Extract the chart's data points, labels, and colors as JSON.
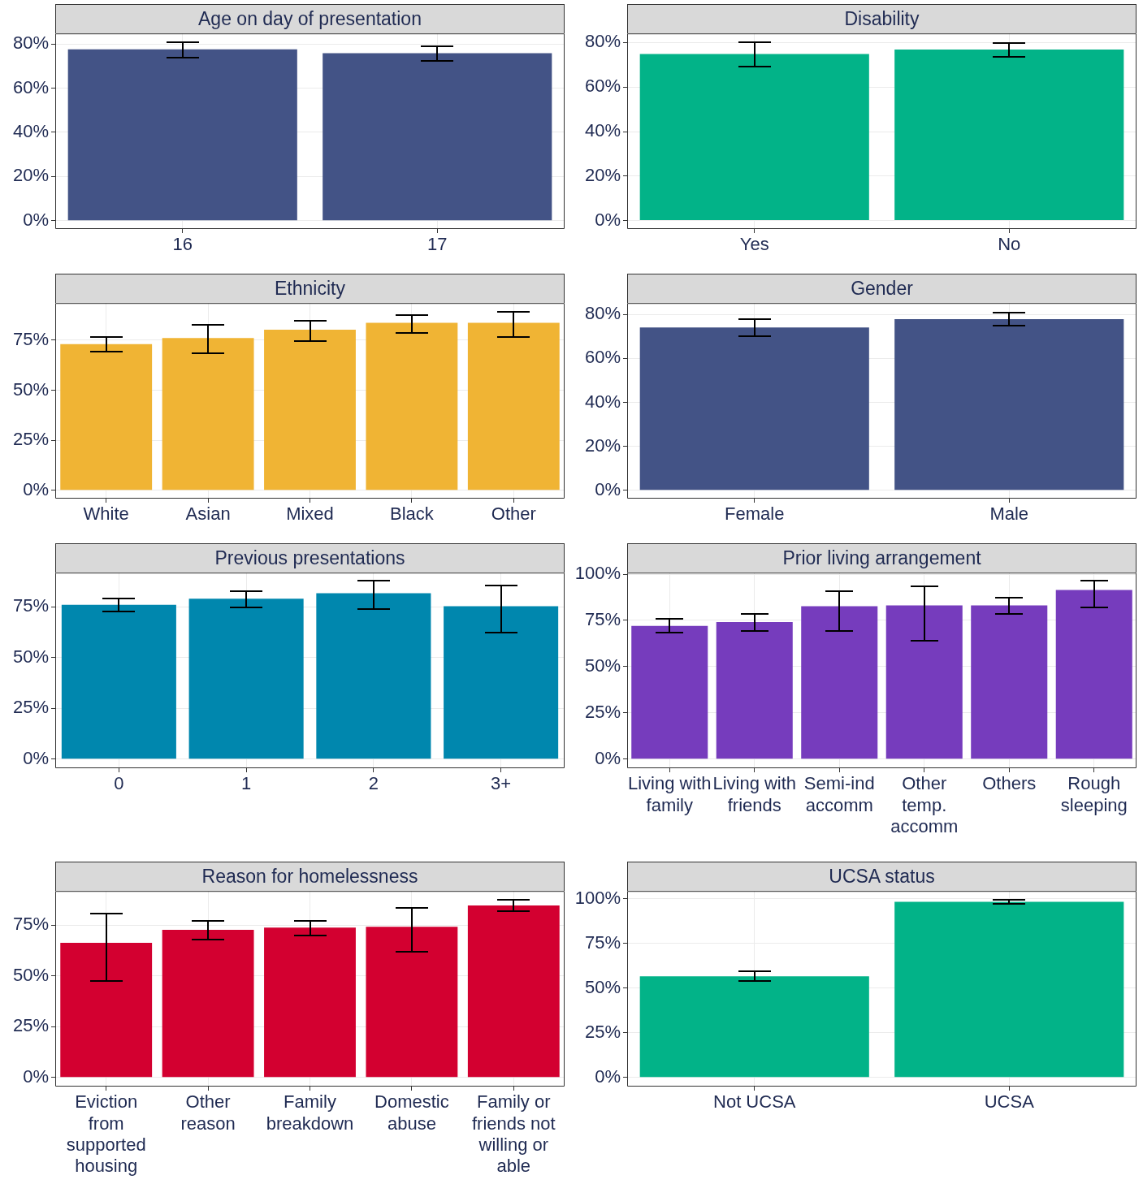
{
  "chart_data": [
    {
      "type": "bar",
      "title": "Age on day of presentation",
      "categories": [
        "16",
        "17"
      ],
      "values": [
        77.6,
        75.9
      ],
      "errors": [
        [
          73.8,
          80.7
        ],
        [
          72.4,
          79.0
        ]
      ],
      "color": "#435386",
      "ylim": [
        -3.8,
        84.8
      ],
      "yticks": [
        {
          "value": 0,
          "label": "0%"
        },
        {
          "value": 20,
          "label": "20%"
        },
        {
          "value": 40,
          "label": "40%"
        },
        {
          "value": 60,
          "label": "60%"
        },
        {
          "value": 80,
          "label": "80%"
        }
      ],
      "grid": true
    },
    {
      "type": "bar",
      "title": "Disability",
      "categories": [
        "Yes",
        "No"
      ],
      "values": [
        74.9,
        76.9
      ],
      "errors": [
        [
          69.1,
          80.0
        ],
        [
          73.5,
          79.7
        ]
      ],
      "color": "#02b388",
      "ylim": [
        -3.8,
        84.1
      ],
      "yticks": [
        {
          "value": 0,
          "label": "0%"
        },
        {
          "value": 20,
          "label": "20%"
        },
        {
          "value": 40,
          "label": "40%"
        },
        {
          "value": 60,
          "label": "60%"
        },
        {
          "value": 80,
          "label": "80%"
        }
      ],
      "grid": true
    },
    {
      "type": "bar",
      "title": "Ethnicity",
      "categories": [
        "White",
        "Asian",
        "Mixed",
        "Black",
        "Other"
      ],
      "values": [
        73.1,
        76.1,
        80.3,
        83.7,
        83.7
      ],
      "errors": [
        [
          69.3,
          76.5
        ],
        [
          68.5,
          82.6
        ],
        [
          74.6,
          84.9
        ],
        [
          78.8,
          87.6
        ],
        [
          76.5,
          89.1
        ]
      ],
      "color": "#f0b434",
      "ylim": [
        -4.2,
        93.6
      ],
      "yticks": [
        {
          "value": 0,
          "label": "0%"
        },
        {
          "value": 25,
          "label": "25%"
        },
        {
          "value": 50,
          "label": "50%"
        },
        {
          "value": 75,
          "label": "75%"
        }
      ],
      "grid": true
    },
    {
      "type": "bar",
      "title": "Gender",
      "categories": [
        "Female",
        "Male"
      ],
      "values": [
        74.1,
        77.9
      ],
      "errors": [
        [
          70.3,
          77.9
        ],
        [
          74.8,
          81.0
        ]
      ],
      "color": "#435386",
      "ylim": [
        -3.8,
        85.2
      ],
      "yticks": [
        {
          "value": 0,
          "label": "0%"
        },
        {
          "value": 20,
          "label": "20%"
        },
        {
          "value": 40,
          "label": "40%"
        },
        {
          "value": 60,
          "label": "60%"
        },
        {
          "value": 80,
          "label": "80%"
        }
      ],
      "grid": true
    },
    {
      "type": "bar",
      "title": "Previous presentations",
      "categories": [
        "0",
        "1",
        "2",
        "3+"
      ],
      "values": [
        76.1,
        79.1,
        81.8,
        75.4
      ],
      "errors": [
        [
          72.8,
          79.1
        ],
        [
          74.6,
          82.9
        ],
        [
          73.9,
          87.8
        ],
        [
          62.3,
          85.5
        ]
      ],
      "color": "#0087ae",
      "ylim": [
        -4.5,
        91.9
      ],
      "yticks": [
        {
          "value": 0,
          "label": "0%"
        },
        {
          "value": 25,
          "label": "25%"
        },
        {
          "value": 50,
          "label": "50%"
        },
        {
          "value": 75,
          "label": "75%"
        }
      ],
      "grid": true
    },
    {
      "type": "bar",
      "title": "Prior living arrangement",
      "categories": [
        "Living with family",
        "Living with friends",
        "Semi-ind accomm",
        "Other temp. accomm",
        "Others",
        "Rough sleeping"
      ],
      "values": [
        72.0,
        74.1,
        82.7,
        83.1,
        83.1,
        91.4
      ],
      "errors": [
        [
          68.3,
          75.7
        ],
        [
          69.5,
          78.6
        ],
        [
          69.1,
          90.9
        ],
        [
          63.8,
          93.4
        ],
        [
          78.6,
          87.2
        ],
        [
          81.9,
          96.3
        ]
      ],
      "color": "#763cbd",
      "ylim": [
        -4.9,
        100.8
      ],
      "yticks": [
        {
          "value": 0,
          "label": "0%"
        },
        {
          "value": 25,
          "label": "25%"
        },
        {
          "value": 50,
          "label": "50%"
        },
        {
          "value": 75,
          "label": "75%"
        },
        {
          "value": 100,
          "label": "100%"
        }
      ],
      "grid": true
    },
    {
      "type": "bar",
      "title": "Reason for homelessness",
      "categories": [
        "Eviction from supported housing",
        "Other reason",
        "Family breakdown",
        "Domestic abuse",
        "Family or friends not willing or able"
      ],
      "values": [
        66.4,
        72.8,
        73.9,
        74.3,
        84.8
      ],
      "errors": [
        [
          47.6,
          80.6
        ],
        [
          67.9,
          77.3
        ],
        [
          69.8,
          77.3
        ],
        [
          61.9,
          83.6
        ],
        [
          81.8,
          87.4
        ]
      ],
      "color": "#d30030",
      "ylim": [
        -4.5,
        91.9
      ],
      "yticks": [
        {
          "value": 0,
          "label": "0%"
        },
        {
          "value": 25,
          "label": "25%"
        },
        {
          "value": 50,
          "label": "50%"
        },
        {
          "value": 75,
          "label": "75%"
        }
      ],
      "grid": true
    },
    {
      "type": "bar",
      "title": "UCSA status",
      "categories": [
        "Not UCSA",
        "UCSA"
      ],
      "values": [
        56.6,
        98.3
      ],
      "errors": [
        [
          54.0,
          59.6
        ],
        [
          97.0,
          99.6
        ]
      ],
      "color": "#02b388",
      "ylim": [
        -5.1,
        104.3
      ],
      "yticks": [
        {
          "value": 0,
          "label": "0%"
        },
        {
          "value": 25,
          "label": "25%"
        },
        {
          "value": 50,
          "label": "50%"
        },
        {
          "value": 75,
          "label": "75%"
        },
        {
          "value": 100,
          "label": "100%"
        }
      ],
      "grid": true
    }
  ]
}
